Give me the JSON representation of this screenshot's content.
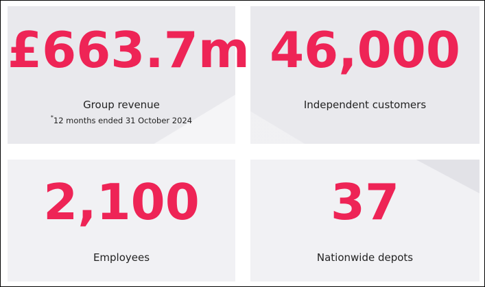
{
  "stats": [
    {
      "value": "£663.7m",
      "marker": "*",
      "label": "Group revenue",
      "footnote_marker": "*",
      "footnote": "12 months ended 31 October 2024"
    },
    {
      "value": "46,000",
      "label": "Independent customers"
    },
    {
      "value": "2,100",
      "label": "Employees"
    },
    {
      "value": "37",
      "label": "Nationwide depots"
    }
  ],
  "colors": {
    "accent": "#ee2456",
    "card_background": "#e9e9ed",
    "text": "#222222"
  }
}
